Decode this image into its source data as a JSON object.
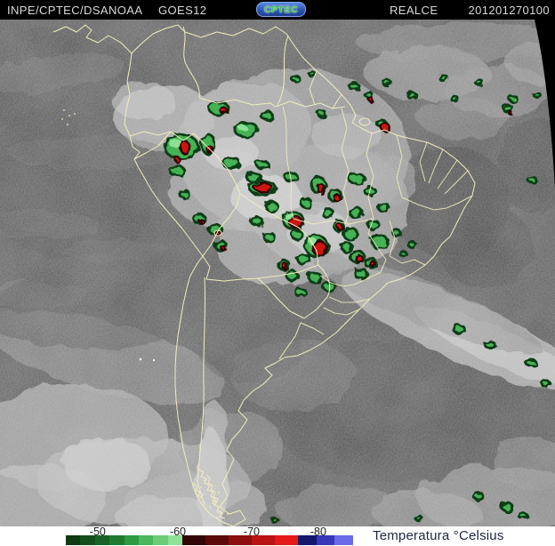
{
  "header": {
    "source": "INPE/CPTEC/DSA",
    "agency": "NOAA",
    "satellite": "GOES12",
    "logo_text": "CPTEC",
    "product": "REALCE",
    "timestamp": "201201270100"
  },
  "legend": {
    "title": "Temperatura °Celsius",
    "ticks": [
      {
        "label": "-50",
        "pct": 11.1
      },
      {
        "label": "-60",
        "pct": 39.0
      },
      {
        "label": "-70",
        "pct": 64.7
      },
      {
        "label": "-80",
        "pct": 87.9
      }
    ],
    "segments": [
      {
        "color": "#0d3a13",
        "span": 16.4
      },
      {
        "color": "#124f1c",
        "span": 16.4
      },
      {
        "color": "#176325",
        "span": 16.4
      },
      {
        "color": "#1e7c2e",
        "span": 16.4
      },
      {
        "color": "#2e9a42",
        "span": 16.4
      },
      {
        "color": "#4cb65c",
        "span": 16.4
      },
      {
        "color": "#6ccc78",
        "span": 16.4
      },
      {
        "color": "#8fe297",
        "span": 16.4
      },
      {
        "color": "#330505",
        "span": 26
      },
      {
        "color": "#5c0909",
        "span": 26
      },
      {
        "color": "#8c0e0e",
        "span": 26
      },
      {
        "color": "#bb1312",
        "span": 26
      },
      {
        "color": "#e51917",
        "span": 26
      },
      {
        "color": "#16166b",
        "span": 20.7
      },
      {
        "color": "#3737b8",
        "span": 20.7
      },
      {
        "color": "#6b6bea",
        "span": 20.7
      }
    ],
    "colors": {
      "border_yellow": "#f2ecbe",
      "enhance_green": "#44b257",
      "enhance_red": "#cf1310",
      "ocean_gray": "#585858"
    }
  }
}
